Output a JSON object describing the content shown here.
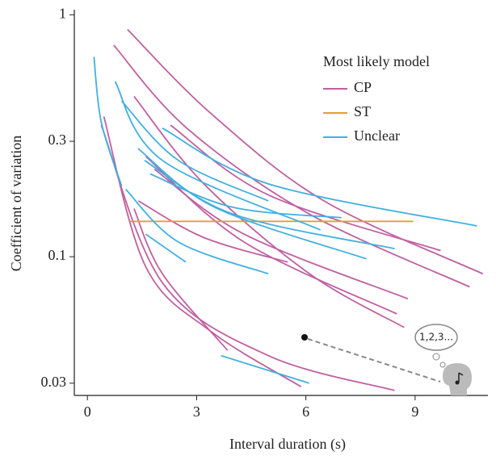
{
  "chart_data": {
    "type": "line",
    "xlabel": "Interval duration (s)",
    "ylabel": "Coefficient of variation",
    "xlim": [
      -0.36,
      11
    ],
    "xticks": [
      0,
      3,
      6,
      9
    ],
    "ylim": [
      0.0267,
      1.05
    ],
    "yticks": [
      0.03,
      0.1,
      0.3,
      1
    ],
    "log_y": true,
    "legend_title": "Most likely model",
    "legend": "upper right",
    "annotation": "1,2,3...",
    "series": [
      {
        "name": "CP",
        "color": "#c060a0",
        "curves": [
          {
            "x": [
              1.1,
              3.4,
              6.5,
              10.86
            ],
            "values": [
              0.87,
              0.39,
              0.17,
              0.085
            ]
          },
          {
            "x": [
              0.72,
              2.73,
              6.1,
              10.5
            ],
            "values": [
              0.75,
              0.34,
              0.15,
              0.075
            ]
          },
          {
            "x": [
              0.45,
              1.6,
              3.4,
              5.87
            ],
            "values": [
              0.38,
              0.091,
              0.049,
              0.029
            ]
          },
          {
            "x": [
              0.38,
              2.06,
              4.97,
              8.44
            ],
            "values": [
              0.35,
              0.078,
              0.039,
              0.028
            ]
          },
          {
            "x": [
              1.28,
              3.2,
              6.1,
              8.7
            ],
            "values": [
              0.46,
              0.2,
              0.085,
              0.051
            ]
          },
          {
            "x": [
              2.28,
              4.97,
              9.7
            ],
            "values": [
              0.35,
              0.18,
              0.106
            ]
          },
          {
            "x": [
              1.84,
              4.3,
              8.8
            ],
            "values": [
              0.23,
              0.124,
              0.067
            ]
          },
          {
            "x": [
              1.4,
              3.2,
              5.5
            ],
            "values": [
              0.17,
              0.12,
              0.095
            ]
          },
          {
            "x": [
              1.28,
              2.06,
              3.85
            ],
            "values": [
              0.158,
              0.085,
              0.041
            ]
          },
          {
            "x": [
              1.6,
              4.3,
              8.5
            ],
            "values": [
              0.26,
              0.115,
              0.058
            ]
          }
        ]
      },
      {
        "name": "ST",
        "color": "#e0a030",
        "curves": [
          {
            "x": [
              1.16,
              8.95
            ],
            "values": [
              0.14,
              0.14
            ]
          }
        ]
      },
      {
        "name": "Unclear",
        "color": "#40b0e0",
        "curves": [
          {
            "x": [
              0.18,
              0.38,
              0.94
            ],
            "values": [
              0.67,
              0.36,
              0.196
            ]
          },
          {
            "x": [
              0.76,
              2.06,
              6.4
            ],
            "values": [
              0.53,
              0.25,
              0.129
            ]
          },
          {
            "x": [
              0.94,
              2.5,
              4.97
            ],
            "values": [
              0.44,
              0.25,
              0.17
            ]
          },
          {
            "x": [
              2.06,
              4.97,
              10.7
            ],
            "values": [
              0.34,
              0.2,
              0.134
            ]
          },
          {
            "x": [
              1.05,
              2.5,
              4.97
            ],
            "values": [
              0.19,
              0.115,
              0.085
            ]
          },
          {
            "x": [
              1.6,
              2.7
            ],
            "values": [
              0.124,
              0.095
            ]
          },
          {
            "x": [
              3.67,
              6.09
            ],
            "values": [
              0.039,
              0.03
            ]
          },
          {
            "x": [
              1.39,
              3.5,
              7.66
            ],
            "values": [
              0.28,
              0.16,
              0.098
            ]
          },
          {
            "x": [
              1.57,
              4.0,
              8.44
            ],
            "values": [
              0.25,
              0.15,
              0.108
            ]
          },
          {
            "x": [
              1.72,
              4.0,
              6.98
            ],
            "values": [
              0.22,
              0.16,
              0.145
            ]
          }
        ]
      }
    ]
  }
}
